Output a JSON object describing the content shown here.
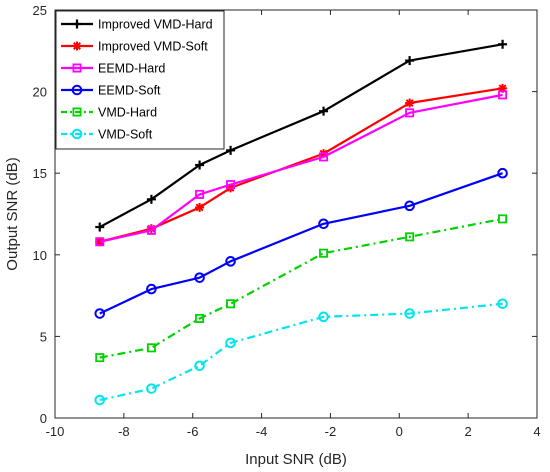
{
  "chart_data": {
    "type": "line",
    "title": "",
    "xlabel": "Input SNR (dB)",
    "ylabel": "Output SNR (dB)",
    "xlim": [
      -10,
      4
    ],
    "ylim": [
      0,
      25
    ],
    "xticks": [
      -10,
      -8,
      -6,
      -4,
      -2,
      0,
      2,
      4
    ],
    "yticks": [
      0,
      5,
      10,
      15,
      20,
      25
    ],
    "grid": false,
    "legend_position": "top-left",
    "x": [
      -8.7,
      -7.2,
      -5.8,
      -4.9,
      -2.2,
      0.3,
      3.0
    ],
    "series": [
      {
        "name": "Improved VMD-Hard",
        "values": [
          11.7,
          13.4,
          15.5,
          16.4,
          18.8,
          21.9,
          22.9
        ],
        "color": "#000000",
        "marker": "plus",
        "dash": "solid"
      },
      {
        "name": "Improved VMD-Soft",
        "values": [
          10.8,
          11.6,
          12.9,
          14.1,
          16.2,
          19.3,
          20.2
        ],
        "color": "#ff0000",
        "marker": "asterisk",
        "dash": "solid"
      },
      {
        "name": "EEMD-Hard",
        "values": [
          10.8,
          11.5,
          13.7,
          14.3,
          16.0,
          18.7,
          19.8
        ],
        "color": "#ff00ff",
        "marker": "square",
        "dash": "solid"
      },
      {
        "name": "EEMD-Soft",
        "values": [
          6.4,
          7.9,
          8.6,
          9.6,
          11.9,
          13.0,
          15.0
        ],
        "color": "#0000ff",
        "marker": "circle",
        "dash": "solid"
      },
      {
        "name": "VMD-Hard",
        "values": [
          3.7,
          4.3,
          6.1,
          7.0,
          10.1,
          11.1,
          12.2
        ],
        "color": "#00d200",
        "marker": "square",
        "dash": "dashdot"
      },
      {
        "name": "VMD-Soft",
        "values": [
          1.1,
          1.8,
          3.2,
          4.6,
          6.2,
          6.4,
          7.0
        ],
        "color": "#00e5f0",
        "marker": "circle",
        "dash": "dashdot"
      }
    ]
  }
}
